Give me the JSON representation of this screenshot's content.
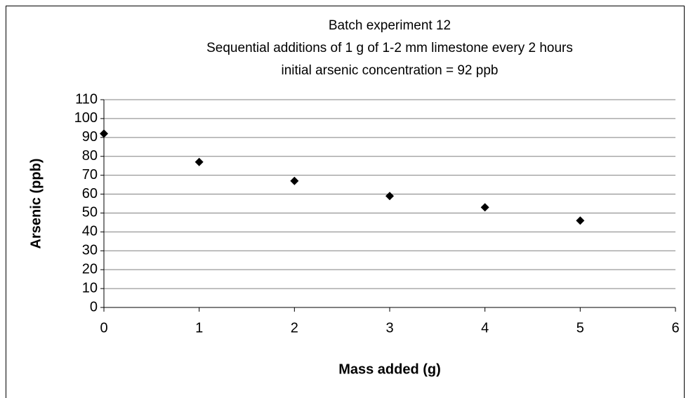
{
  "chart_data": {
    "type": "scatter",
    "title": "Batch experiment 12",
    "subtitle": [
      "Sequential additions of 1 g of 1-2 mm limestone every 2 hours",
      "initial arsenic concentration = 92 ppb"
    ],
    "x_label": "Mass added (g)",
    "y_label": "Arsenic (ppb)",
    "x": [
      0,
      1,
      2,
      3,
      4,
      5
    ],
    "values": [
      92,
      77,
      67,
      59,
      53,
      46
    ],
    "color": "#000000",
    "xlim": [
      0,
      6
    ],
    "xticks": [
      0,
      1,
      2,
      3,
      4,
      5,
      6
    ],
    "ylim": [
      0,
      110
    ],
    "yticks": [
      0,
      10,
      20,
      30,
      40,
      50,
      60,
      70,
      80,
      90,
      100,
      110
    ],
    "grid": true
  }
}
